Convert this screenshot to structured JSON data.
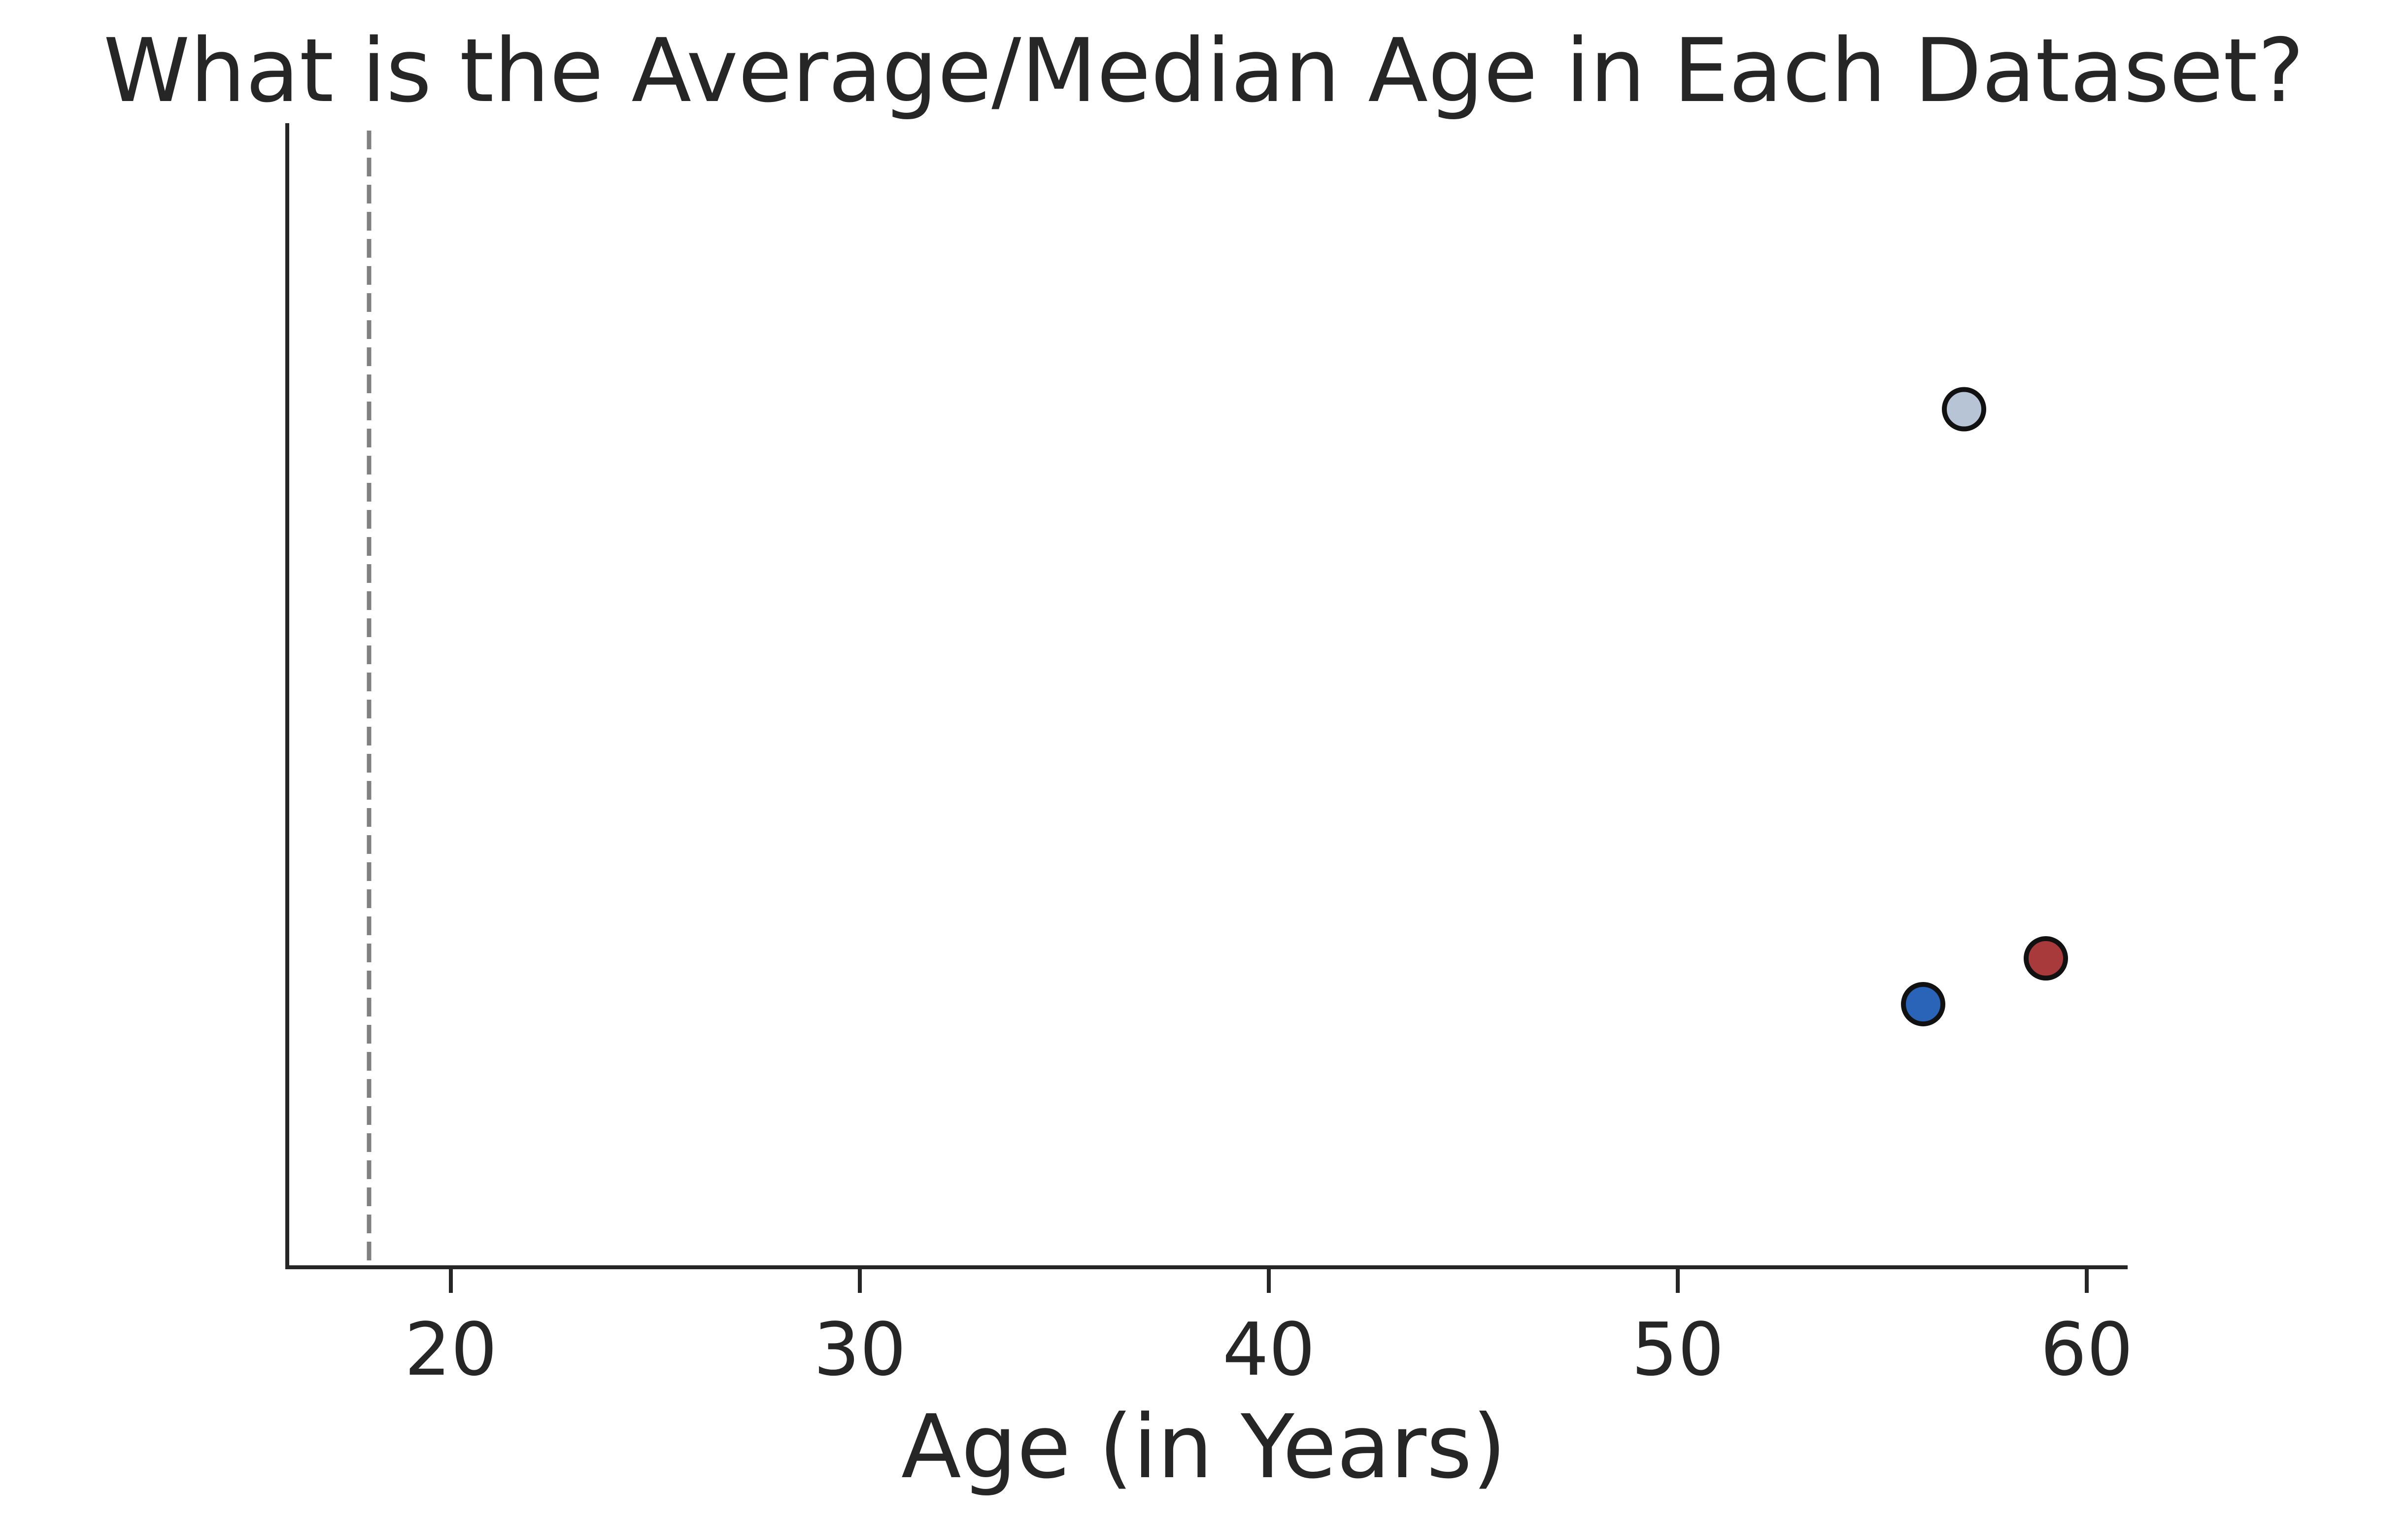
{
  "chart_data": {
    "type": "scatter",
    "title": "What is the Average/Median Age in Each Dataset?",
    "xlabel": "Age (in Years)",
    "ylabel": "",
    "xlim": [
      16,
      61
    ],
    "ylim": [
      0,
      1
    ],
    "xticks": [
      20,
      30,
      40,
      50,
      60
    ],
    "xtick_labels": [
      "20",
      "30",
      "40",
      "50",
      "60"
    ],
    "yticks_visible": false,
    "grid": false,
    "legend": "none",
    "reference_line": {
      "orientation": "vertical",
      "x": 18,
      "style": "dashed",
      "color": "#808080"
    },
    "points": [
      {
        "x": 57,
        "y": 0.75,
        "color": "#b7c4d6"
      },
      {
        "x": 59,
        "y": 0.27,
        "color": "#a83a3c"
      },
      {
        "x": 56,
        "y": 0.23,
        "color": "#2a64b8"
      }
    ],
    "marker_edge_color": "#111111"
  }
}
